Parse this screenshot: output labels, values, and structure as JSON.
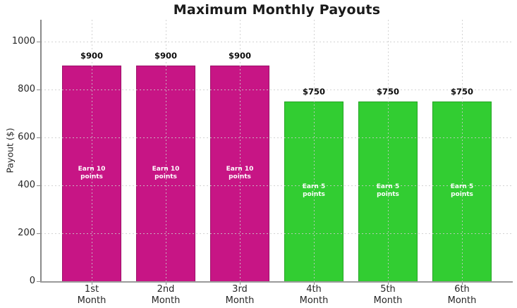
{
  "chart_data": {
    "type": "bar",
    "title": "Maximum Monthly Payouts",
    "ylabel": "Payout ($)",
    "xlabel": "",
    "categories": [
      "1st\nMonth",
      "2nd\nMonth",
      "3rd\nMonth",
      "4th\nMonth",
      "5th\nMonth",
      "6th\nMonth"
    ],
    "values": [
      900,
      900,
      900,
      750,
      750,
      750
    ],
    "bar_value_labels": [
      "$900",
      "$900",
      "$900",
      "$750",
      "$750",
      "$750"
    ],
    "bar_inner_labels": [
      "Earn 10\npoints",
      "Earn 10\npoints",
      "Earn 10\npoints",
      "Earn 5\npoints",
      "Earn 5\npoints",
      "Earn 5\npoints"
    ],
    "bar_fill_colors": [
      "#C71585",
      "#C71585",
      "#C71585",
      "#32CD32",
      "#32CD32",
      "#32CD32"
    ],
    "bar_edge_colors": [
      "#9C1068",
      "#9C1068",
      "#9C1068",
      "#25A425",
      "#25A425",
      "#25A425"
    ],
    "yticks": [
      0,
      200,
      400,
      600,
      800,
      1000
    ],
    "ylim": [
      0,
      1090
    ],
    "grid": "dashed",
    "legend_position": "none"
  },
  "colors": {
    "background": "#ffffff",
    "grid": "#cbcbcb",
    "spine": "#8a8a8a",
    "title_text": "#1a1a1a",
    "tick_text": "#262626",
    "inner_label_text": "#ffffff"
  }
}
